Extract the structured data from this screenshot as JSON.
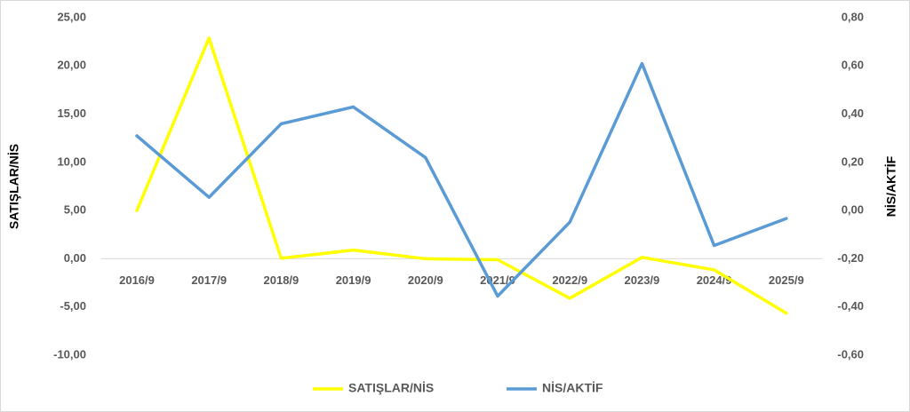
{
  "chart_data": {
    "type": "line",
    "categories": [
      "2016/9",
      "2017/9",
      "2018/9",
      "2019/9",
      "2020/9",
      "2021/9",
      "2022/9",
      "2023/9",
      "2024/9",
      "2025/9"
    ],
    "series": [
      {
        "name": "SATIŞLAR/NİS",
        "color": "#ffff00",
        "values": [
          5.0,
          22.9,
          0.05,
          0.9,
          0.0,
          -0.1,
          -4.1,
          0.15,
          -1.15,
          -5.65
        ]
      },
      {
        "name": "NİS/AKTİF",
        "color": "#5b9bd5",
        "axis": "y2",
        "values": [
          0.31,
          0.055,
          0.36,
          0.43,
          0.22,
          -0.355,
          -0.048,
          0.61,
          -0.145,
          -0.033
        ]
      }
    ],
    "ylabel": "SATIŞLAR/NİS",
    "y2label": "NİS/AKTİF",
    "ylim": [
      -10,
      25
    ],
    "yticks": [
      {
        "value": -10,
        "label": "-10,00"
      },
      {
        "value": -5,
        "label": "-5,00"
      },
      {
        "value": 0,
        "label": "0,00"
      },
      {
        "value": 5,
        "label": "5,00"
      },
      {
        "value": 10,
        "label": "10,00"
      },
      {
        "value": 15,
        "label": "15,00"
      },
      {
        "value": 20,
        "label": "20,00"
      },
      {
        "value": 25,
        "label": "25,00"
      }
    ],
    "y2lim": [
      -0.6,
      0.8
    ],
    "y2ticks": [
      {
        "value": -0.6,
        "label": "-0,60"
      },
      {
        "value": -0.4,
        "label": "-0,40"
      },
      {
        "value": -0.2,
        "label": "-0,20"
      },
      {
        "value": 0,
        "label": "0,00"
      },
      {
        "value": 0.2,
        "label": "0,20"
      },
      {
        "value": 0.4,
        "label": "0,40"
      },
      {
        "value": 0.6,
        "label": "0,60"
      },
      {
        "value": 0.8,
        "label": "0,80"
      }
    ],
    "grid": false,
    "legend": "bottom"
  }
}
